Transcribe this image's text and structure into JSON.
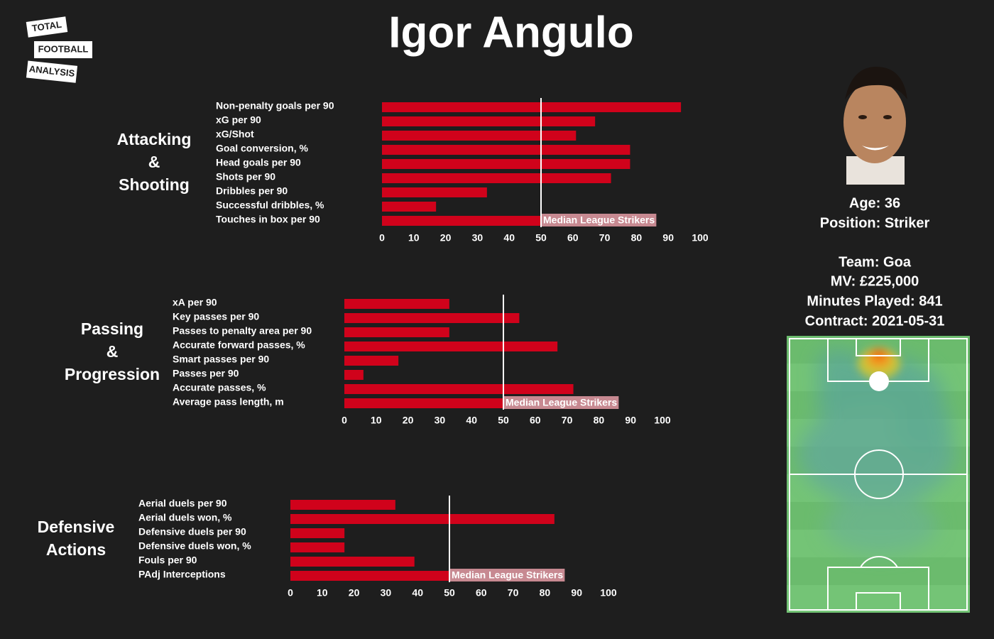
{
  "title": "Igor Angulo",
  "logo": [
    "TOTAL",
    "FOOTBALL",
    "ANALYSIS"
  ],
  "profile": [
    "Age: 36",
    "Position: Striker",
    "Team: Goa",
    "MV: £225,000",
    "Minutes Played: 841",
    "Contract: 2021-05-31"
  ],
  "chart_data": [
    {
      "type": "bar",
      "orientation": "horizontal",
      "title": [
        "Attacking",
        "&",
        "Shooting"
      ],
      "categories": [
        "Non-penalty goals per 90",
        "xG per 90",
        "xG/Shot",
        "Goal conversion, %",
        "Head goals per 90",
        "Shots per 90",
        "Dribbles per 90",
        "Successful dribbles, %",
        "Touches in box per 90"
      ],
      "values": [
        94,
        67,
        61,
        78,
        78,
        72,
        33,
        17,
        50
      ],
      "color": "#d0021b",
      "median": 50,
      "median_label": "Median League Strikers",
      "xlim": [
        0,
        100
      ],
      "xticks": [
        0,
        10,
        20,
        30,
        40,
        50,
        60,
        70,
        80,
        90,
        100
      ]
    },
    {
      "type": "bar",
      "orientation": "horizontal",
      "title": [
        "Passing",
        "&",
        "Progression"
      ],
      "categories": [
        "xA per 90",
        "Key passes per 90",
        "Passes to penalty area per 90",
        "Accurate forward passes, %",
        "Smart passes per 90",
        "Passes per 90",
        "Accurate passes, %",
        "Average pass length, m"
      ],
      "values": [
        33,
        55,
        33,
        67,
        17,
        6,
        72,
        50
      ],
      "color": "#d0021b",
      "median": 50,
      "median_label": "Median League Strikers",
      "xlim": [
        0,
        100
      ],
      "xticks": [
        0,
        10,
        20,
        30,
        40,
        50,
        60,
        70,
        80,
        90,
        100
      ]
    },
    {
      "type": "bar",
      "orientation": "horizontal",
      "title": [
        "Defensive",
        "Actions"
      ],
      "categories": [
        "Aerial duels per 90",
        "Aerial duels won, %",
        "Defensive duels per 90",
        "Defensive duels won, %",
        "Fouls per 90",
        "PAdj Interceptions"
      ],
      "values": [
        33,
        83,
        17,
        17,
        39,
        50
      ],
      "color": "#d0021b",
      "median": 50,
      "median_label": "Median League Strikers",
      "xlim": [
        0,
        100
      ],
      "xticks": [
        0,
        10,
        20,
        30,
        40,
        50,
        60,
        70,
        80,
        90,
        100
      ]
    }
  ]
}
